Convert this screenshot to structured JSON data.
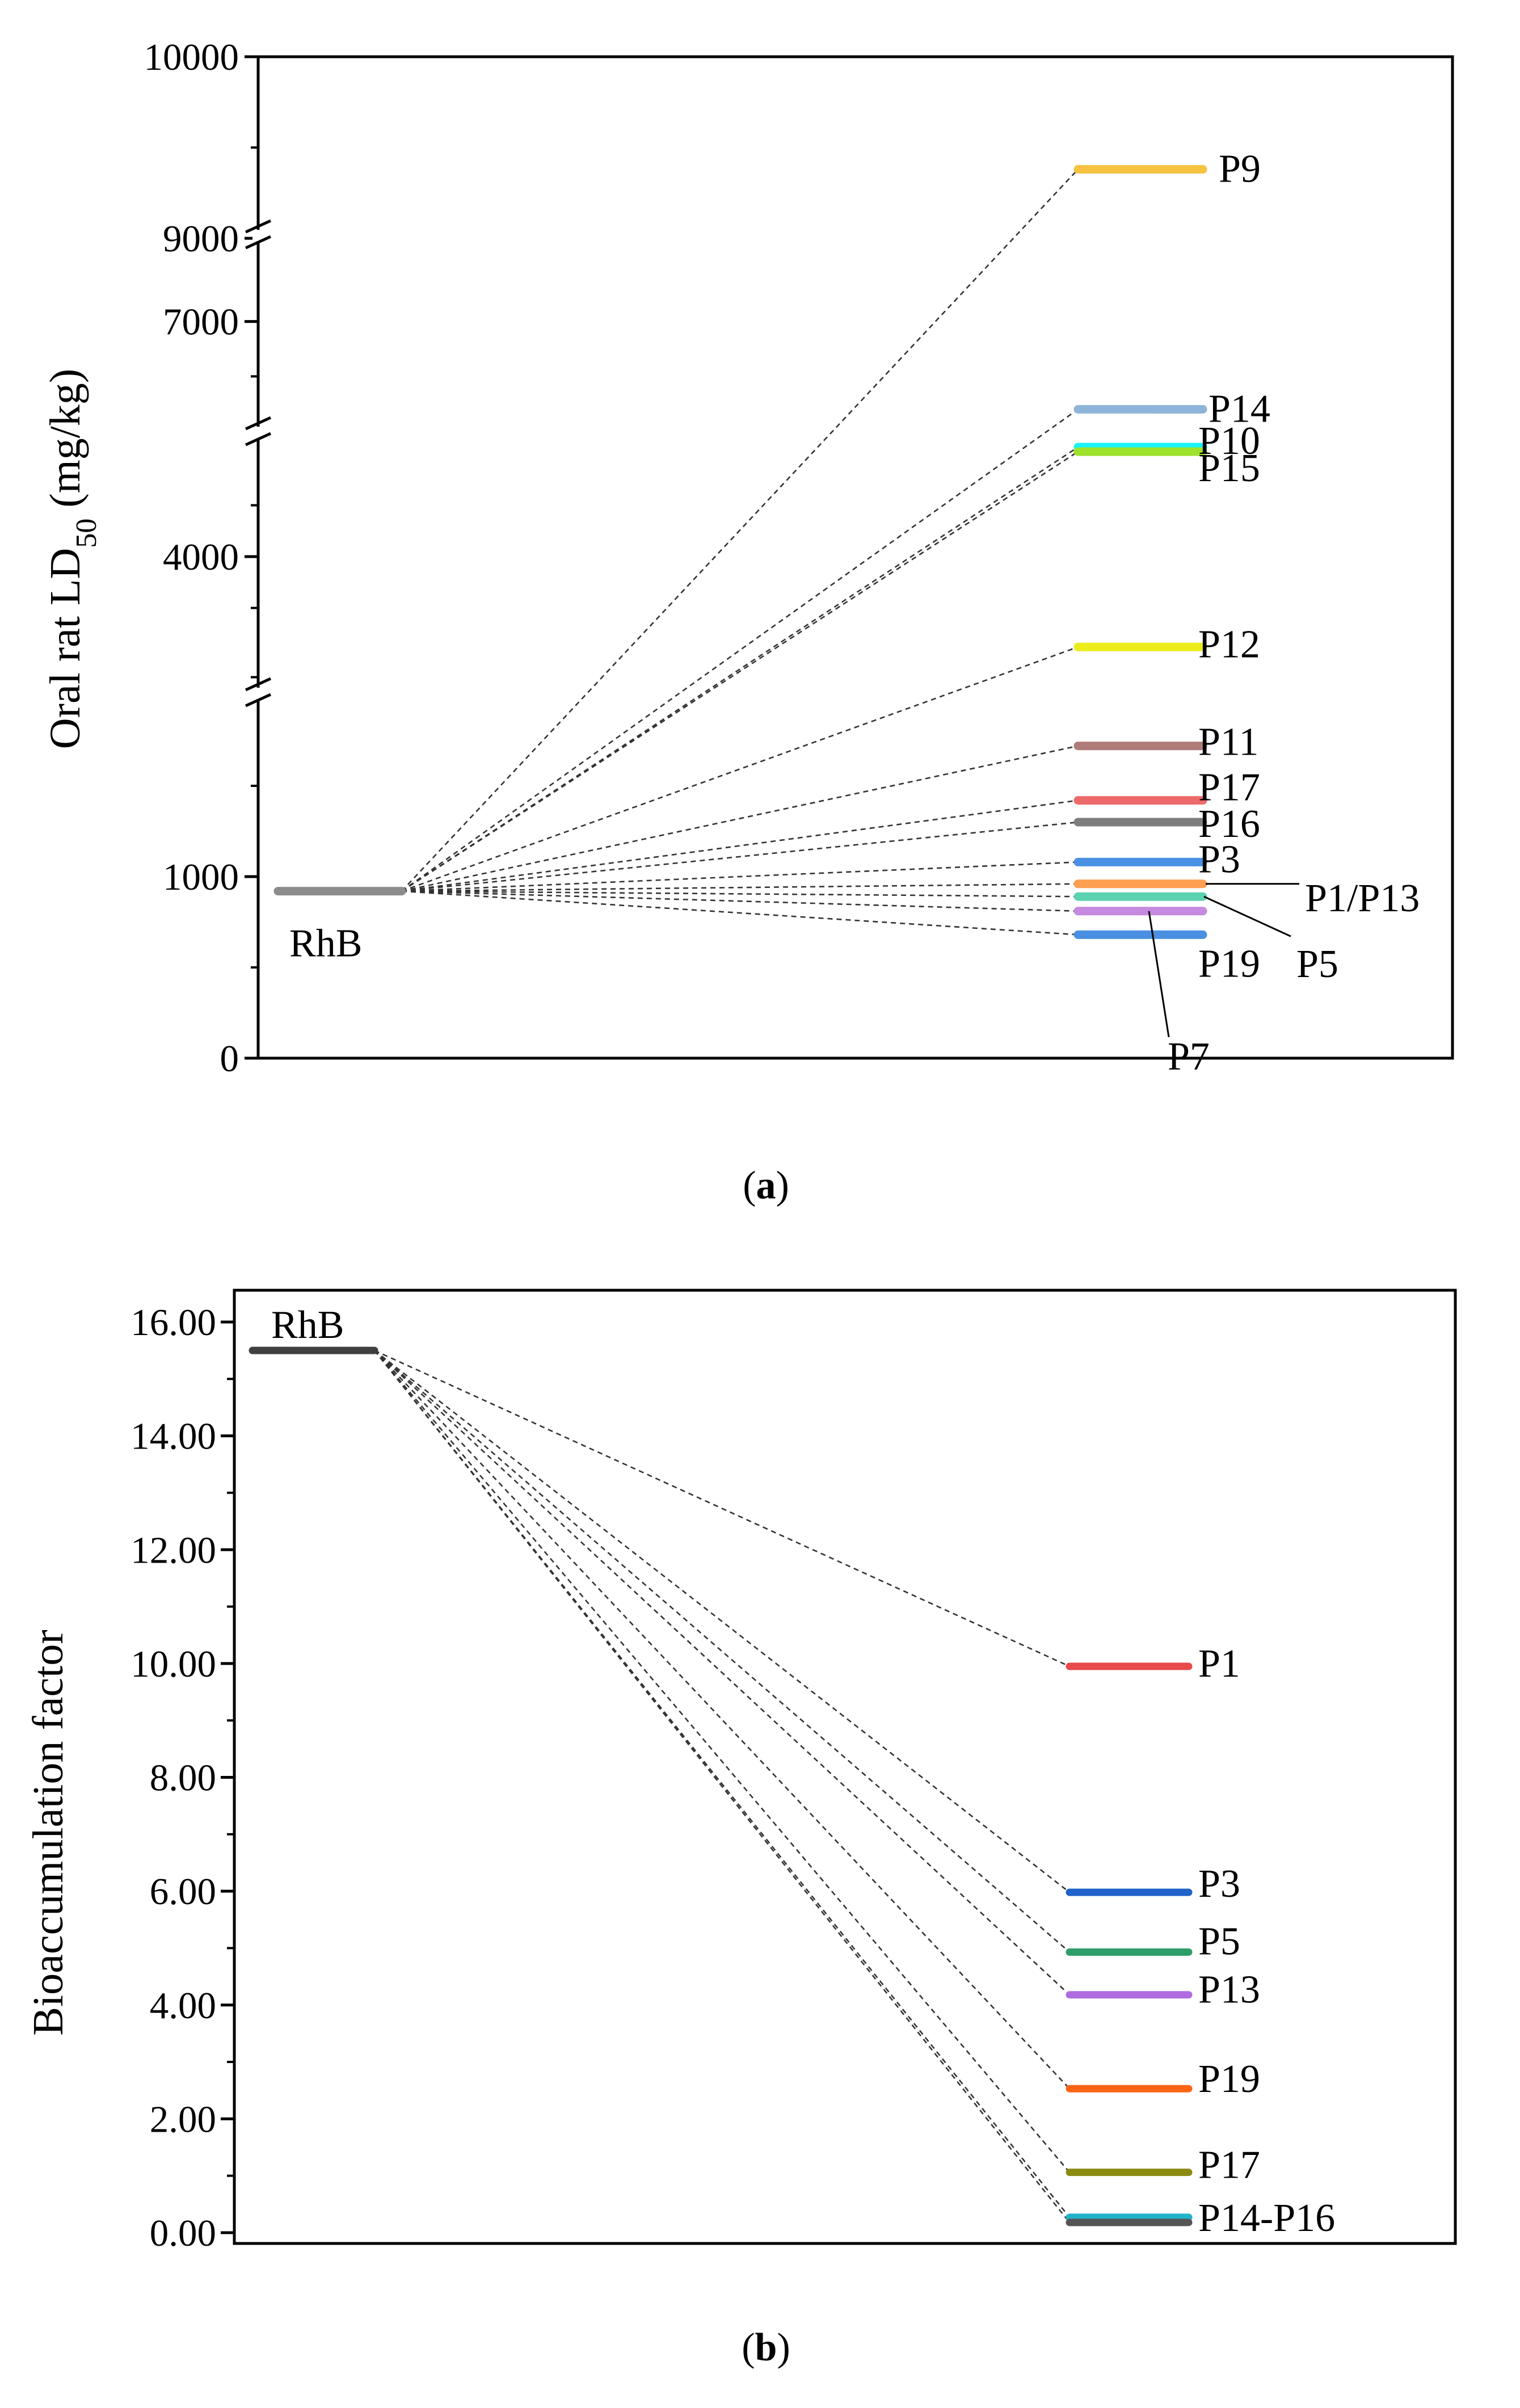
{
  "chart_data": [
    {
      "type": "line",
      "panel": "a",
      "caption_open": "(",
      "caption": "a",
      "caption_close": ")",
      "ylabel": "Oral rat LD",
      "ylabel_sub": "50",
      "ylabel_unit": " (mg/kg)",
      "yticks": [
        "0",
        "1000",
        "4000",
        "7000",
        "9000",
        "10000"
      ],
      "axis_breaks": true,
      "source": {
        "name": "RhB",
        "value": 920,
        "color": "#8c8c8c"
      },
      "products": [
        {
          "name": "P9",
          "label": "P9",
          "value": 9380,
          "color": "#f5c242"
        },
        {
          "name": "P14",
          "label": "P14",
          "value": 6200,
          "color": "#8fb4d9"
        },
        {
          "name": "P10",
          "label": "P10",
          "value": 5300,
          "color": "#19f2f7"
        },
        {
          "name": "P15",
          "label": "P15",
          "value": 5100,
          "color": "#9ee22a"
        },
        {
          "name": "P12",
          "label": "P12",
          "value": 3120,
          "color": "#ecec1a"
        },
        {
          "name": "P11",
          "label": "P11",
          "value": 1720,
          "color": "#b07c79"
        },
        {
          "name": "P17",
          "label": "P17",
          "value": 1420,
          "color": "#ee6a6a"
        },
        {
          "name": "P16",
          "label": "P16",
          "value": 1300,
          "color": "#7d7d7d"
        },
        {
          "name": "P3",
          "label": "P3",
          "value": 1080,
          "color": "#4a90e2"
        },
        {
          "name": "P1/P13",
          "label": "P1/P13",
          "value": 960,
          "color": "#ff9f52"
        },
        {
          "name": "P5",
          "label": "P5",
          "value": 890,
          "color": "#5bd3b0"
        },
        {
          "name": "P7",
          "label": "P7",
          "value": 810,
          "color": "#c68ae0"
        },
        {
          "name": "P19",
          "label": "P19",
          "value": 680,
          "color": "#4a90e2"
        }
      ]
    },
    {
      "type": "line",
      "panel": "b",
      "caption_open": "(",
      "caption": "b",
      "caption_close": ")",
      "ylabel": "Bioaccumulation factor",
      "ylim": [
        0,
        16
      ],
      "yticks": [
        "0.00",
        "2.00",
        "4.00",
        "6.00",
        "8.00",
        "10.00",
        "12.00",
        "14.00",
        "16.00"
      ],
      "source": {
        "name": "RhB",
        "value": 15.5,
        "color": "#404040"
      },
      "products": [
        {
          "name": "P1",
          "label": "P1",
          "value": 9.95,
          "color": "#e84a4a"
        },
        {
          "name": "P3",
          "label": "P3",
          "value": 5.98,
          "color": "#1f63c9"
        },
        {
          "name": "P5",
          "label": "P5",
          "value": 4.93,
          "color": "#2e9e68"
        },
        {
          "name": "P13",
          "label": "P13",
          "value": 4.18,
          "color": "#b06be0"
        },
        {
          "name": "P19",
          "label": "P19",
          "value": 2.53,
          "color": "#ff6414"
        },
        {
          "name": "P17",
          "label": "P17",
          "value": 1.06,
          "color": "#8b8b12"
        },
        {
          "name": "P14",
          "label": "P14-P16",
          "value": 0.27,
          "color": "#22b3c9"
        },
        {
          "name": "P16",
          "label": "",
          "value": 0.18,
          "color": "#555555"
        }
      ]
    }
  ]
}
